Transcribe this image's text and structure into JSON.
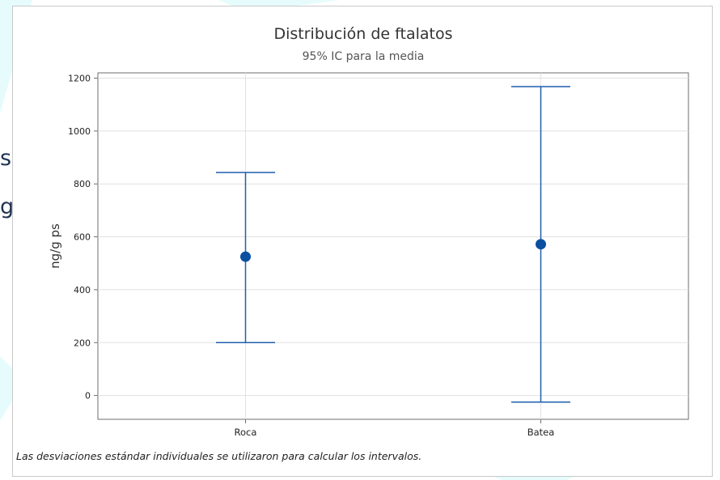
{
  "background": {
    "fragments": [
      "s",
      "g"
    ],
    "text_color": "#1f3352"
  },
  "chart_data": {
    "type": "interval",
    "title": "Distribución de ftalatos",
    "subtitle": "95% IC para la media",
    "xlabel": "",
    "ylabel": "ng/g ps",
    "ylim": [
      -90,
      1220
    ],
    "yticks": [
      0,
      200,
      400,
      600,
      800,
      1000,
      1200
    ],
    "grid": true,
    "categories": [
      "Roca",
      "Batea"
    ],
    "series": [
      {
        "mean": [
          525,
          572
        ],
        "lower": [
          200,
          -25
        ],
        "upper": [
          843,
          1168
        ]
      }
    ],
    "colors": {
      "interval": "#1f5fae",
      "marker": "#0b4fa0",
      "grid": "#e1e1e1"
    }
  },
  "footnote": "Las desviaciones estándar individuales se utilizaron para calcular los intervalos."
}
